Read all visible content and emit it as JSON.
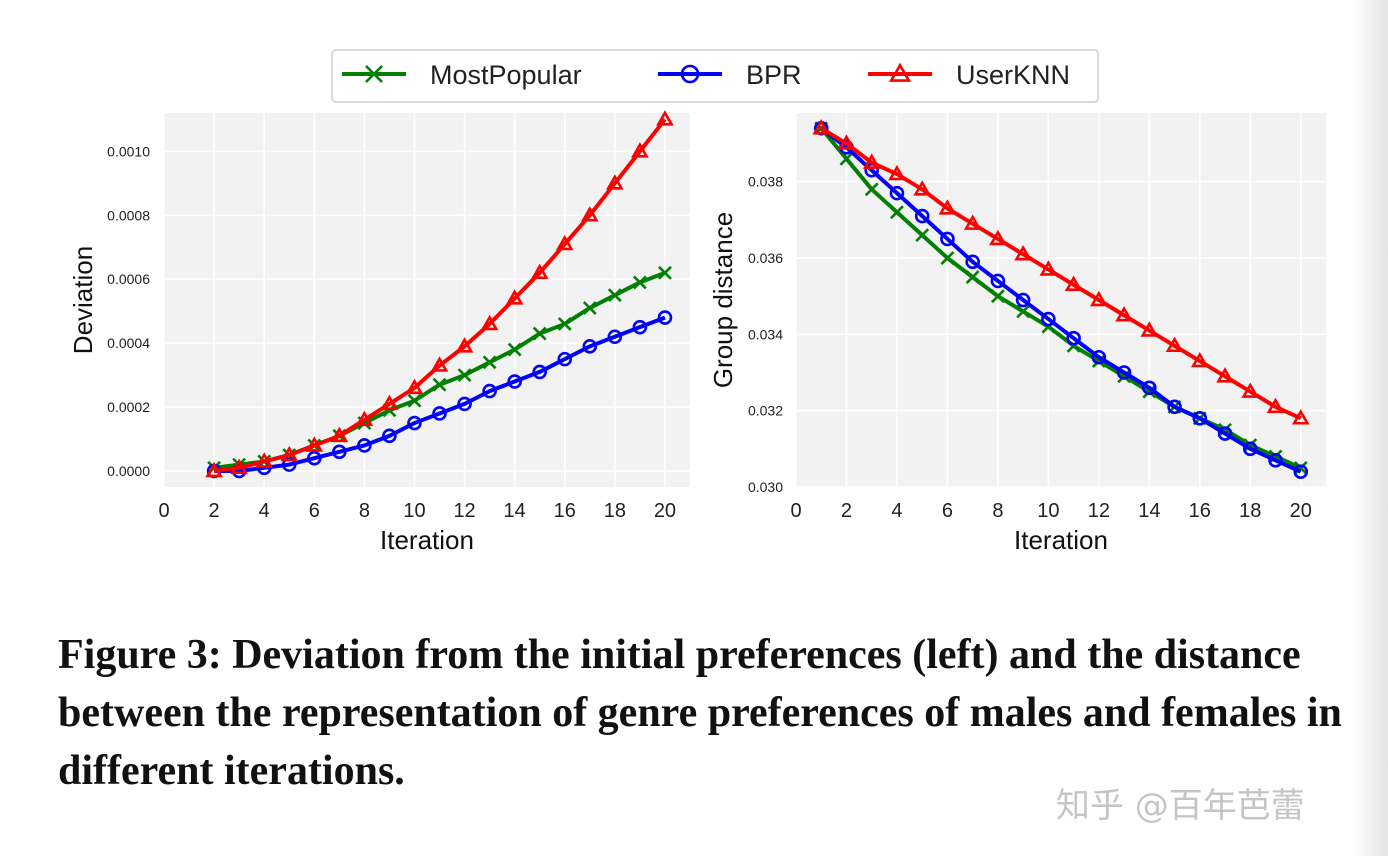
{
  "legend": {
    "items": [
      {
        "name": "MostPopular",
        "color": "#008000",
        "marker": "x"
      },
      {
        "name": "BPR",
        "color": "#0000ff",
        "marker": "o"
      },
      {
        "name": "UserKNN",
        "color": "#ff0000",
        "marker": "^"
      }
    ]
  },
  "chart_data": [
    {
      "type": "line",
      "title": "",
      "xlabel": "Iteration",
      "ylabel": "Deviation",
      "xlim": [
        0,
        21
      ],
      "ylim": [
        -5e-05,
        0.00112
      ],
      "xticks": [
        0,
        2,
        4,
        6,
        8,
        10,
        12,
        14,
        16,
        18,
        20
      ],
      "yticks": [
        0.0,
        0.0002,
        0.0004,
        0.0006,
        0.0008,
        0.001
      ],
      "ytick_labels": [
        "0.0000",
        "0.0002",
        "0.0004",
        "0.0006",
        "0.0008",
        "0.0010"
      ],
      "x": [
        2,
        3,
        4,
        5,
        6,
        7,
        8,
        9,
        10,
        11,
        12,
        13,
        14,
        15,
        16,
        17,
        18,
        19,
        20
      ],
      "series": [
        {
          "name": "MostPopular",
          "values": [
            1e-05,
            2e-05,
            3e-05,
            5e-05,
            8e-05,
            0.00011,
            0.00015,
            0.00019,
            0.00022,
            0.00027,
            0.0003,
            0.00034,
            0.00038,
            0.00043,
            0.00046,
            0.00051,
            0.00055,
            0.00059,
            0.00062
          ]
        },
        {
          "name": "BPR",
          "values": [
            0.0,
            0.0,
            1e-05,
            2e-05,
            4e-05,
            6e-05,
            8e-05,
            0.00011,
            0.00015,
            0.00018,
            0.00021,
            0.00025,
            0.00028,
            0.00031,
            0.00035,
            0.00039,
            0.00042,
            0.00045,
            0.00048
          ]
        },
        {
          "name": "UserKNN",
          "values": [
            0.0,
            1e-05,
            3e-05,
            5e-05,
            8e-05,
            0.00011,
            0.00016,
            0.00021,
            0.00026,
            0.00033,
            0.00039,
            0.00046,
            0.00054,
            0.00062,
            0.00071,
            0.0008,
            0.0009,
            0.001,
            0.0011
          ]
        }
      ]
    },
    {
      "type": "line",
      "title": "",
      "xlabel": "Iteration",
      "ylabel": "Group distance",
      "xlim": [
        0,
        21
      ],
      "ylim": [
        0.03,
        0.0398
      ],
      "xticks": [
        0,
        2,
        4,
        6,
        8,
        10,
        12,
        14,
        16,
        18,
        20
      ],
      "yticks": [
        0.03,
        0.032,
        0.034,
        0.036,
        0.038
      ],
      "ytick_labels": [
        "0.030",
        "0.032",
        "0.034",
        "0.036",
        "0.038"
      ],
      "x": [
        1,
        2,
        3,
        4,
        5,
        6,
        7,
        8,
        9,
        10,
        11,
        12,
        13,
        14,
        15,
        16,
        17,
        18,
        19,
        20
      ],
      "series": [
        {
          "name": "MostPopular",
          "values": [
            0.0394,
            0.0386,
            0.0378,
            0.0372,
            0.0366,
            0.036,
            0.0355,
            0.035,
            0.0346,
            0.0342,
            0.0337,
            0.0333,
            0.0329,
            0.0325,
            0.0321,
            0.0318,
            0.0315,
            0.0311,
            0.0308,
            0.0305
          ]
        },
        {
          "name": "BPR",
          "values": [
            0.0394,
            0.0389,
            0.0383,
            0.0377,
            0.0371,
            0.0365,
            0.0359,
            0.0354,
            0.0349,
            0.0344,
            0.0339,
            0.0334,
            0.033,
            0.0326,
            0.0321,
            0.0318,
            0.0314,
            0.031,
            0.0307,
            0.0304
          ]
        },
        {
          "name": "UserKNN",
          "values": [
            0.0394,
            0.039,
            0.0385,
            0.0382,
            0.0378,
            0.0373,
            0.0369,
            0.0365,
            0.0361,
            0.0357,
            0.0353,
            0.0349,
            0.0345,
            0.0341,
            0.0337,
            0.0333,
            0.0329,
            0.0325,
            0.0321,
            0.0318
          ]
        }
      ]
    }
  ],
  "caption": "Figure 3: Deviation from the initial preferences (left) and the distance between the representation of genre preferences of males and females in different iterations.",
  "watermark": "知乎 @百年芭蕾"
}
